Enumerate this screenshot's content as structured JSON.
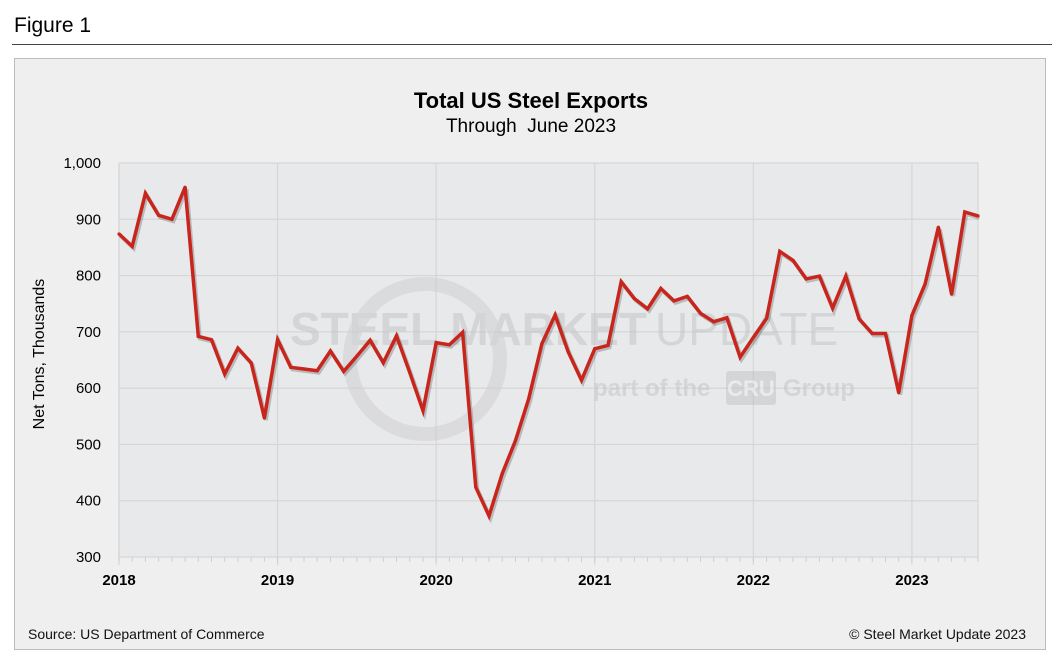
{
  "figure_label": "Figure 1",
  "source": "Source: US Department of Commerce",
  "copyright": "© Steel Market Update 2023",
  "watermark": {
    "line1_bold": "STEEL MARKET",
    "line1_light": "UPDATE",
    "line2": "part of the",
    "badge": "CRU",
    "line2_end": "Group"
  },
  "colors": {
    "line": "#c8251c",
    "plot_bg": "#e8e9eb",
    "panel_bg": "#efefef",
    "grid": "#d6d6d6"
  },
  "chart_data": {
    "type": "line",
    "title": "Total US Steel Exports",
    "subtitle": "Through  June 2023",
    "xlabel": "",
    "ylabel": "Net Tons, Thousands",
    "ylim": [
      300,
      1000
    ],
    "yticks": [
      "300",
      "400",
      "500",
      "600",
      "700",
      "800",
      "900",
      "1,000"
    ],
    "xticks": [
      "2018",
      "2019",
      "2020",
      "2021",
      "2022",
      "2023"
    ],
    "grid": true,
    "legend": "none",
    "x_start": "2018-01",
    "x_end": "2023-06",
    "x_frequency": "monthly",
    "series": [
      {
        "values": [
          874,
          852,
          946,
          907,
          900,
          957,
          692,
          686,
          625,
          671,
          645,
          547,
          686,
          637,
          634,
          631,
          666,
          630,
          657,
          685,
          645,
          693,
          628,
          560,
          681,
          677,
          699,
          424,
          373,
          448,
          507,
          581,
          679,
          730,
          664,
          614,
          670,
          676,
          789,
          759,
          741,
          777,
          755,
          763,
          733,
          718,
          725,
          655,
          690,
          724,
          843,
          827,
          794,
          799,
          742,
          799,
          723,
          697,
          697,
          592,
          729,
          785,
          886,
          767,
          913,
          906
        ]
      }
    ]
  }
}
